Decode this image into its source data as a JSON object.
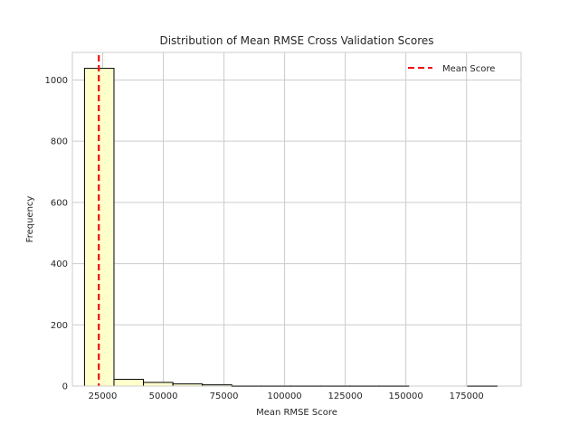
{
  "chart_data": {
    "type": "bar",
    "title": "Distribution of Mean RMSE Cross Validation Scores",
    "xlabel": "Mean RMSE Score",
    "ylabel": "Frequency",
    "xlim": [
      12500,
      197500
    ],
    "ylim": [
      0,
      1090
    ],
    "xticks": [
      25000,
      50000,
      75000,
      100000,
      125000,
      150000,
      175000
    ],
    "yticks": [
      0,
      200,
      400,
      600,
      800,
      1000
    ],
    "grid": true,
    "legend_position": "top-right",
    "bins": [
      {
        "x0": 17500,
        "x1": 29650,
        "count": 1038
      },
      {
        "x0": 29650,
        "x1": 41800,
        "count": 22
      },
      {
        "x0": 41800,
        "x1": 53950,
        "count": 12
      },
      {
        "x0": 53950,
        "x1": 66100,
        "count": 7
      },
      {
        "x0": 66100,
        "x1": 78250,
        "count": 4
      },
      {
        "x0": 78250,
        "x1": 90400,
        "count": 1
      },
      {
        "x0": 90400,
        "x1": 102550,
        "count": 1
      },
      {
        "x0": 102550,
        "x1": 114700,
        "count": 1
      },
      {
        "x0": 114700,
        "x1": 126850,
        "count": 1
      },
      {
        "x0": 126850,
        "x1": 139000,
        "count": 1
      },
      {
        "x0": 139000,
        "x1": 151150,
        "count": 1
      },
      {
        "x0": 151150,
        "x1": 163300,
        "count": 0
      },
      {
        "x0": 163300,
        "x1": 175450,
        "count": 0
      },
      {
        "x0": 175450,
        "x1": 187600,
        "count": 1
      }
    ],
    "bar_fill": "#ffffcc",
    "bar_edge": "#000000",
    "mean_line": {
      "x": 23400,
      "color": "#ee1111",
      "label": "Mean Score"
    }
  }
}
